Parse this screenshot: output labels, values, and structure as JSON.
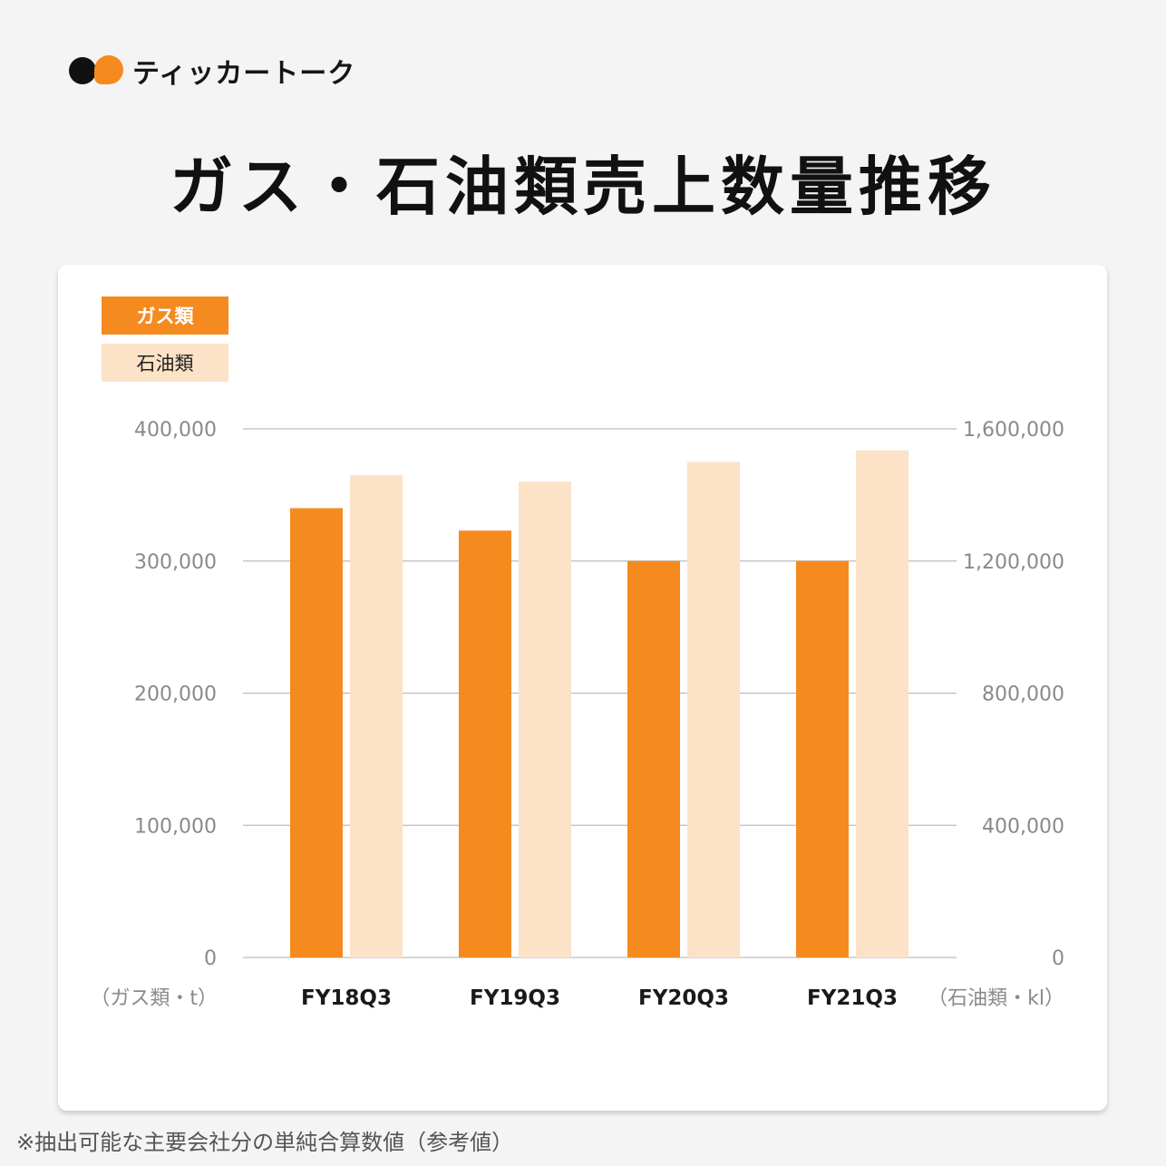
{
  "brand": {
    "name": "ティッカートーク"
  },
  "title": "ガス・石油類売上数量推移",
  "legend": {
    "gas": "ガス類",
    "oil": "石油類"
  },
  "footnote": "※抽出可能な主要会社分の単純合算数値（参考値）",
  "colors": {
    "gas": "#f58a1f",
    "oil": "#fce2c7",
    "grid": "#bdbdbd",
    "axis_text": "#8a8a8a"
  },
  "chart_data": {
    "type": "bar",
    "categories": [
      "FY18Q3",
      "FY19Q3",
      "FY20Q3",
      "FY21Q3"
    ],
    "series": [
      {
        "name": "ガス類",
        "axis": "left",
        "values": [
          340000,
          323000,
          300000,
          300000
        ]
      },
      {
        "name": "石油類",
        "axis": "right",
        "values": [
          1460000,
          1440000,
          1500000,
          1535000
        ]
      }
    ],
    "y_left": {
      "label": "（ガス類・t）",
      "ylim": [
        0,
        400000
      ],
      "ticks": [
        "0",
        "100,000",
        "200,000",
        "300,000",
        "400,000"
      ]
    },
    "y_right": {
      "label": "（石油類・kl）",
      "ylim": [
        0,
        1600000
      ],
      "ticks": [
        "0",
        "400,000",
        "800,000",
        "1,200,000",
        "1,600,000"
      ]
    },
    "grid": true,
    "legend_position": "top-left"
  }
}
